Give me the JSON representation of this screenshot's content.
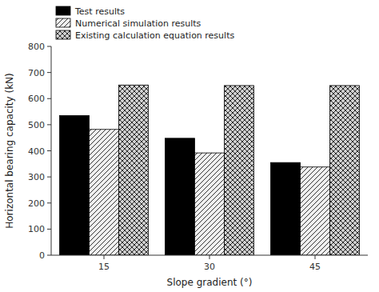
{
  "chart_data": {
    "type": "bar",
    "categories": [
      "15",
      "30",
      "45"
    ],
    "series": [
      {
        "name": "Test results",
        "color": "#000000",
        "values": [
          535,
          448,
          355
        ]
      },
      {
        "name": "Numerical simulation results",
        "color": "#f0f0f0",
        "values": [
          482,
          392,
          338
        ]
      },
      {
        "name": "Existing calculation equation results",
        "color": "#d0d0d0",
        "values": [
          652,
          650,
          650
        ]
      }
    ],
    "xlabel": "Slope gradient (°)",
    "ylabel": "Horizontal bearing capacity (kN)",
    "ylim": [
      0,
      800
    ],
    "yticks": [
      0,
      100,
      200,
      300,
      400,
      500,
      600,
      700,
      800
    ],
    "legend": "top",
    "grid": false
  }
}
